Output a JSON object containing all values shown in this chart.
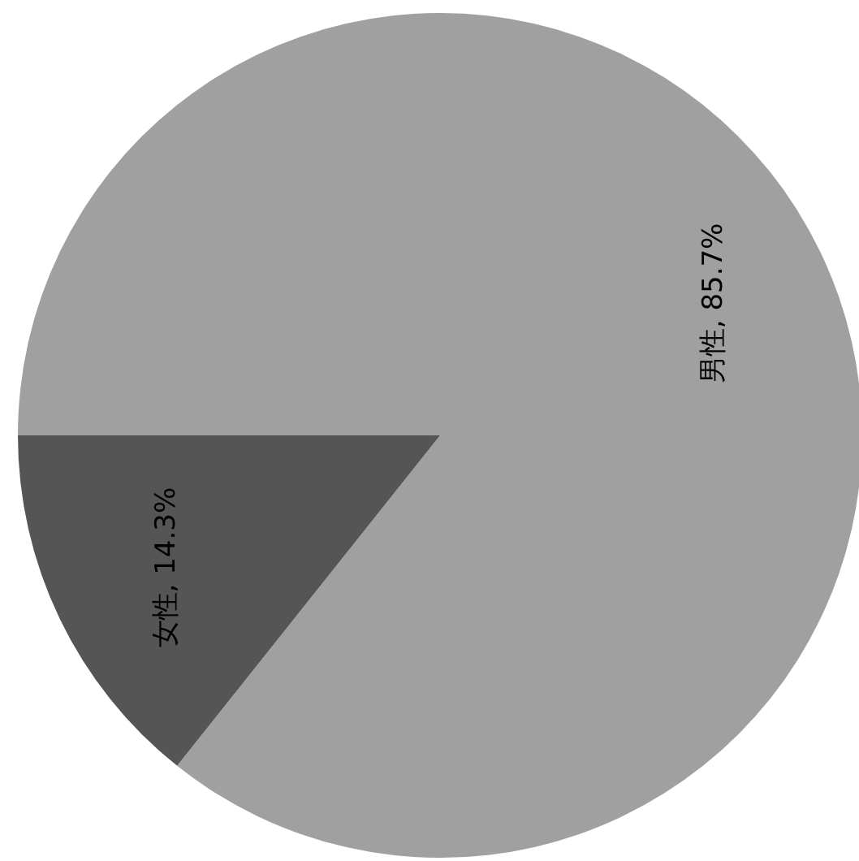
{
  "chart_data": {
    "type": "pie",
    "categories": [
      "男性",
      "女性"
    ],
    "values": [
      85.7,
      14.3
    ],
    "colors": [
      "#a0a0a0",
      "#555555"
    ],
    "value_labels": [
      "85.7%",
      "14.3%"
    ]
  }
}
